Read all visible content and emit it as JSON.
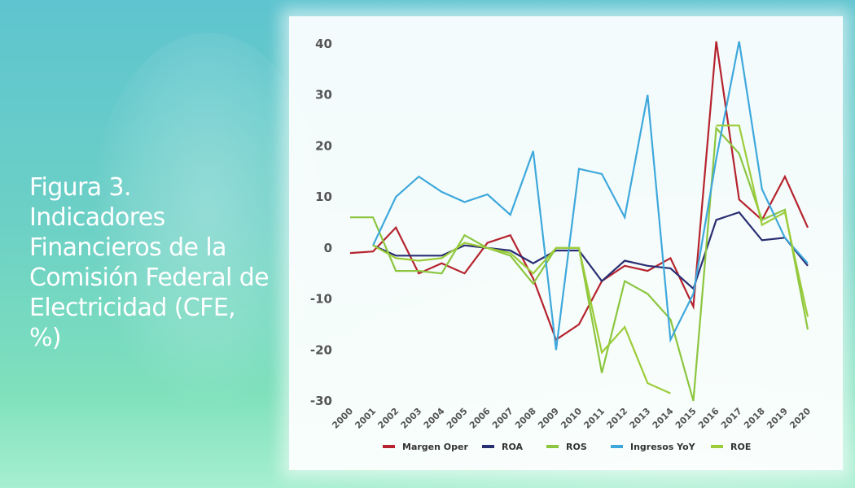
{
  "title": "Figura 3. Indicadores Financieros de la Comisión Federal de Electricidad (CFE, %)",
  "chart_data": {
    "type": "line",
    "title": "",
    "xlabel": "",
    "ylabel": "",
    "ylim": [
      -30,
      40
    ],
    "yticks": [
      40,
      30,
      20,
      10,
      0,
      -10,
      -20,
      -30
    ],
    "x": [
      "2000",
      "2001",
      "2002",
      "2003",
      "2004",
      "2005",
      "2006",
      "2007",
      "2008",
      "2009",
      "2010",
      "2011",
      "2012",
      "2013",
      "2014",
      "2015",
      "2016",
      "2017",
      "2018",
      "2019",
      "2020"
    ],
    "grid": false,
    "legend_position": "bottom",
    "series": [
      {
        "name": "Margen Oper",
        "color": "#b5232e",
        "values": [
          -1,
          -0.7,
          4,
          -5,
          -3,
          -5,
          1,
          2.5,
          -6,
          -18,
          -15,
          -6.5,
          -3.5,
          -4.5,
          -2,
          -11.5,
          40.5,
          9.5,
          5.5,
          14,
          4
        ]
      },
      {
        "name": "ROA",
        "color": "#2a2e73",
        "values": [
          null,
          0.5,
          -1.5,
          -1.5,
          -1.5,
          0.5,
          0,
          -0.5,
          -3,
          -0.5,
          -0.5,
          -6.5,
          -2.5,
          -3.5,
          -4,
          -8,
          5.5,
          7,
          1.5,
          2,
          -3.5
        ]
      },
      {
        "name": "ROS",
        "color": "#8cc63f",
        "values": [
          6,
          6,
          -4.5,
          -4.5,
          -5,
          2.5,
          0,
          -1.5,
          -7,
          0,
          0,
          -24.5,
          -6.5,
          -9,
          -14,
          -30,
          23.5,
          18.5,
          5.5,
          7.5,
          -16
        ]
      },
      {
        "name": "Ingresos YoY",
        "color": "#3ea8dc",
        "values": [
          null,
          0.5,
          10,
          14,
          11,
          9,
          10.5,
          6.5,
          19,
          -20,
          15.5,
          14.5,
          6,
          30,
          -18,
          -9,
          17.5,
          40.5,
          11.5,
          2,
          -3
        ]
      },
      {
        "name": "ROE",
        "color": "#9ccc38",
        "values": [
          null,
          0.5,
          -2,
          -2.5,
          -2,
          1,
          0,
          -1,
          -5,
          0,
          0,
          -20.5,
          -15.5,
          -26.5,
          -28.5,
          null,
          24,
          24,
          4.5,
          7,
          -13.5
        ]
      }
    ]
  }
}
